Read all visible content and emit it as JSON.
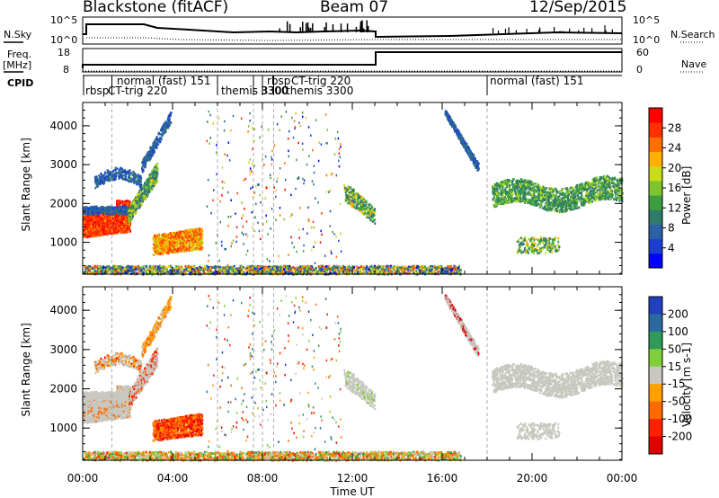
{
  "header": {
    "station": "Blackstone (fitACF)",
    "beam": "Beam 07",
    "date": "12/Sep/2015"
  },
  "top_strip": {
    "left_labels": [
      "N.Sky",
      "Freq.",
      "[MHz]",
      "CPID"
    ],
    "right_labels": [
      "N.Search",
      "Nave"
    ],
    "nsky_ticks": [
      "10^5",
      "10^0"
    ],
    "freq_ticks": [
      "18",
      "8"
    ],
    "nave_ticks": [
      "60",
      "0"
    ],
    "right_n_ticks": [
      "10^5",
      "10^0"
    ]
  },
  "cpid_labels": [
    {
      "text": "rbsp",
      "t": 0.05
    },
    {
      "text": "CT-trig 220",
      "t": 0.55
    },
    {
      "text": "normal (fast) 151",
      "t": 1.3
    },
    {
      "text": "themis 3300",
      "t": 5.9
    },
    {
      "text": "3300",
      "t": 7.5
    },
    {
      "text": "rbsp",
      "t": 7.45
    },
    {
      "text": "CT-trig 220",
      "t": 7.95
    },
    {
      "text": "themis 3300",
      "t": 8.45
    },
    {
      "text": "normal (fast) 151",
      "t": 18.0
    }
  ],
  "cpid_boundaries": [
    1.3,
    6.0,
    7.6,
    8.0,
    8.5,
    18.0
  ],
  "chart_data": [
    {
      "type": "heatmap",
      "panel": "power",
      "ylabel": "Slant Range [km]",
      "xlabel": "Time UT",
      "x_ticks": [
        "00:00",
        "04:00",
        "08:00",
        "12:00",
        "16:00",
        "20:00",
        "00:00"
      ],
      "y_ticks": [
        1000,
        2000,
        3000,
        4000
      ],
      "ylim": [
        180,
        4600
      ],
      "colorbar": {
        "label": "Power [dB]",
        "ticks": [
          4,
          8,
          12,
          16,
          20,
          24,
          28
        ],
        "range": [
          0,
          32
        ],
        "colors": [
          "#0000ff",
          "#1a3fcf",
          "#2c61a8",
          "#2e7b6a",
          "#3c9e3e",
          "#7ec42c",
          "#c8dc1a",
          "#ffb000",
          "#ff7000",
          "#ff3000",
          "#ff0000"
        ]
      }
    },
    {
      "type": "heatmap",
      "panel": "velocity",
      "ylabel": "Slant Range [km]",
      "xlabel": "Time UT",
      "x_ticks": [
        "00:00",
        "04:00",
        "08:00",
        "12:00",
        "16:00",
        "20:00",
        "00:00"
      ],
      "y_ticks": [
        1000,
        2000,
        3000,
        4000
      ],
      "ylim": [
        180,
        4600
      ],
      "colorbar": {
        "label": "Velocity [m s-1]",
        "ticks": [
          "200",
          "100",
          "50",
          "15",
          "-15",
          "-50",
          "-100",
          "-200"
        ],
        "colors": [
          "#2040c0",
          "#2a6aa0",
          "#2f9a5a",
          "#7fcf3a",
          "#c8c8c0",
          "#ffa000",
          "#ff6a00",
          "#ff2000",
          "#e00000"
        ]
      }
    }
  ]
}
